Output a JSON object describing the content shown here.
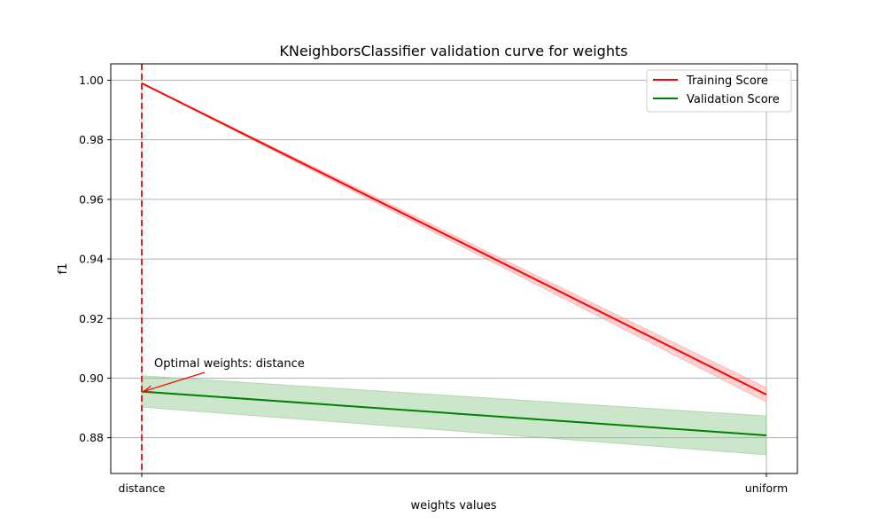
{
  "chart_data": {
    "type": "line",
    "title": "KNeighborsClassifier validation curve for weights",
    "xlabel": "weights values",
    "ylabel": "f1",
    "categories": [
      "distance",
      "uniform"
    ],
    "ylim": [
      0.868,
      1.0055
    ],
    "yticks": [
      0.88,
      0.9,
      0.92,
      0.94,
      0.96,
      0.98,
      1.0
    ],
    "ytick_labels": [
      "0.88",
      "0.90",
      "0.92",
      "0.94",
      "0.96",
      "0.98",
      "1.00"
    ],
    "grid": true,
    "legend_position": "top-right",
    "series": [
      {
        "name": "Training Score",
        "color": "#ff0000",
        "band_color": "#ff9a9a",
        "values": [
          0.999,
          0.8945
        ],
        "band_lower": [
          0.999,
          0.892
        ],
        "band_upper": [
          0.999,
          0.8968
        ]
      },
      {
        "name": "Validation Score",
        "color": "#008000",
        "band_color": "#8fc88f",
        "values": [
          0.8955,
          0.8808
        ],
        "band_lower": [
          0.8903,
          0.8743
        ],
        "band_upper": [
          0.9008,
          0.8873
        ]
      }
    ],
    "optimal_line": {
      "category": "distance",
      "color": "#d62728"
    },
    "annotation": {
      "text": "Optimal weights: distance",
      "category": "distance",
      "value": 0.8955,
      "color": "#ff0000"
    }
  }
}
